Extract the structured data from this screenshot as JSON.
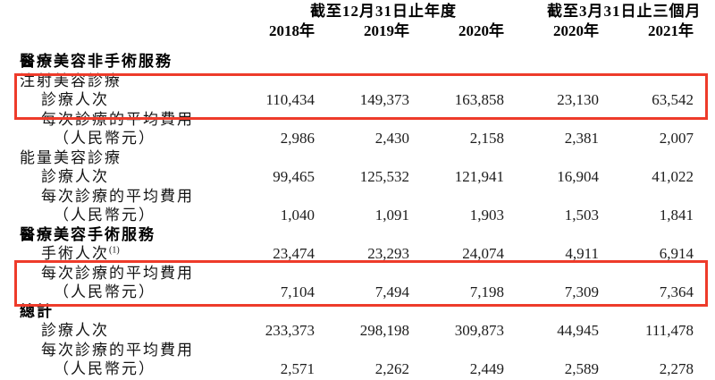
{
  "table": {
    "highlight_color": "#ee3b2a",
    "column_groups": [
      {
        "label": "截至12月31日止年度",
        "span": 3
      },
      {
        "label": "截至3月31日止三個月",
        "span": 2
      }
    ],
    "years": [
      "2018年",
      "2019年",
      "2020年",
      "2020年",
      "2021年"
    ],
    "rows": [
      {
        "label": "醫療美容非手術服務",
        "style": "section",
        "values": [
          "",
          "",
          "",
          "",
          ""
        ]
      },
      {
        "label": "注射美容診療",
        "style": "sub",
        "values": [
          "",
          "",
          "",
          "",
          ""
        ]
      },
      {
        "label": "診療人次",
        "style": "indent1",
        "values": [
          "110,434",
          "149,373",
          "163,858",
          "23,130",
          "63,542"
        ]
      },
      {
        "label": "每次診療的平均費用",
        "style": "indent1",
        "values": [
          "",
          "",
          "",
          "",
          ""
        ]
      },
      {
        "label": "（人民幣元）",
        "style": "indent2",
        "values": [
          "2,986",
          "2,430",
          "2,158",
          "2,381",
          "2,007"
        ]
      },
      {
        "label": "能量美容診療",
        "style": "sub",
        "values": [
          "",
          "",
          "",
          "",
          ""
        ]
      },
      {
        "label": "診療人次",
        "style": "indent1",
        "values": [
          "99,465",
          "125,532",
          "121,941",
          "16,904",
          "41,022"
        ]
      },
      {
        "label": "每次診療的平均費用",
        "style": "indent1",
        "values": [
          "",
          "",
          "",
          "",
          ""
        ]
      },
      {
        "label": "（人民幣元）",
        "style": "indent2",
        "values": [
          "1,040",
          "1,091",
          "1,903",
          "1,503",
          "1,841"
        ]
      },
      {
        "label": "醫療美容手術服務",
        "style": "section",
        "values": [
          "",
          "",
          "",
          "",
          ""
        ]
      },
      {
        "label": "手術人次",
        "sup": "(1)",
        "style": "indent1",
        "values": [
          "23,474",
          "23,293",
          "24,074",
          "4,911",
          "6,914"
        ]
      },
      {
        "label": "每次診療的平均費用",
        "style": "indent1",
        "values": [
          "",
          "",
          "",
          "",
          ""
        ]
      },
      {
        "label": "（人民幣元）",
        "style": "indent2",
        "values": [
          "7,104",
          "7,494",
          "7,198",
          "7,309",
          "7,364"
        ]
      },
      {
        "label": "總計",
        "style": "section",
        "values": [
          "",
          "",
          "",
          "",
          ""
        ]
      },
      {
        "label": "診療人次",
        "style": "indent1",
        "values": [
          "233,373",
          "298,198",
          "309,873",
          "44,945",
          "111,478"
        ]
      },
      {
        "label": "每次診療的平均費用",
        "style": "indent1",
        "values": [
          "",
          "",
          "",
          "",
          ""
        ]
      },
      {
        "label": "（人民幣元）",
        "style": "indent2",
        "values": [
          "2,571",
          "2,262",
          "2,449",
          "2,589",
          "2,278"
        ]
      }
    ],
    "highlights": [
      {
        "name": "highlight-box-injection-treatments",
        "rows": [
          "注射美容診療",
          "診療人次"
        ]
      },
      {
        "name": "highlight-box-surgical-average-fee",
        "rows": [
          "每次診療的平均費用",
          "（人民幣元）"
        ]
      }
    ]
  }
}
